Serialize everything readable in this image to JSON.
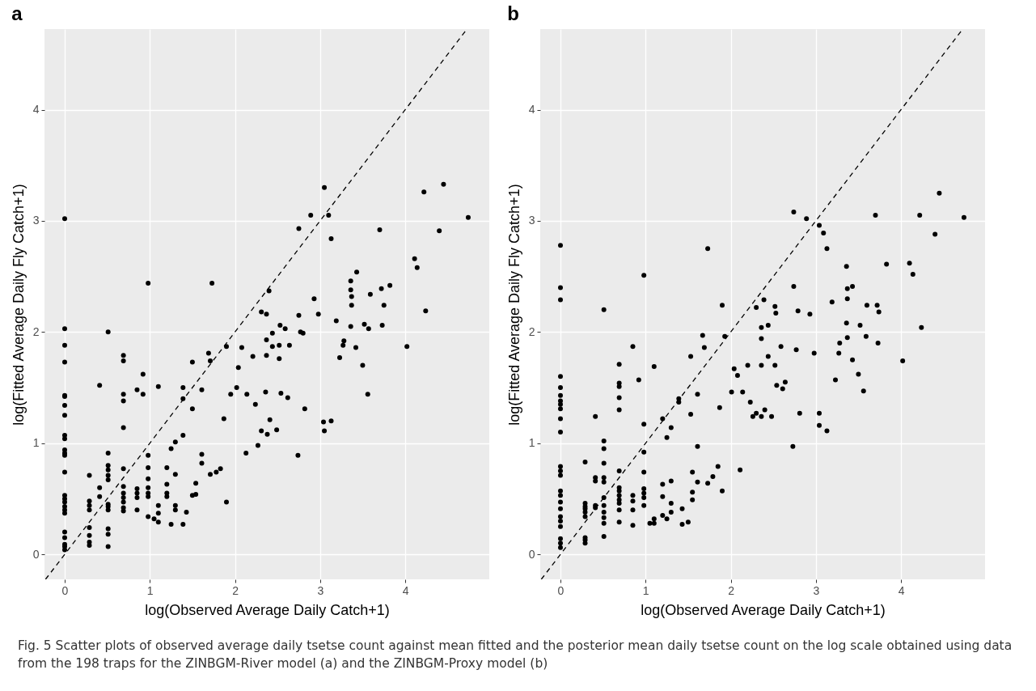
{
  "chart_data": [
    {
      "type": "scatter",
      "title": "a",
      "xlabel": "log(Observed Average Daily Catch+1)",
      "ylabel": "log(Fitted Average Daily Fly Catch+1)",
      "xlim": [
        -0.2375,
        4.9875
      ],
      "ylim": [
        -0.225,
        4.725
      ],
      "xticks": [
        0,
        1,
        2,
        3,
        4
      ],
      "yticks": [
        0,
        1,
        2,
        3,
        4
      ],
      "grid": true,
      "annotations": [
        "Fig. 5 Scatter plots of observed average daily tsetse count against mean fitted and the posterior mean daily tsetse count on the log scale obtained using data from the 198 traps for the ZINBGM-River model (a) and the ZINBGM-Proxy model (b)"
      ],
      "series": [
        {
          "marker": "circle",
          "color": "#000000",
          "x": [
            0,
            0,
            0,
            0,
            0,
            0,
            0,
            0,
            0,
            0,
            0,
            0,
            0,
            0,
            0,
            0,
            0,
            0,
            0,
            0,
            0,
            0,
            0,
            0,
            0,
            0.29,
            0.29,
            0.29,
            0.29,
            0.29,
            0.29,
            0.29,
            0.29,
            0.41,
            0.41,
            0.41,
            0.51,
            0.51,
            0.51,
            0.51,
            0.51,
            0.51,
            0.51,
            0.51,
            0.51,
            0.51,
            0.51,
            0.51,
            0.69,
            0.69,
            0.69,
            0.69,
            0.69,
            0.69,
            0.69,
            0.69,
            0.69,
            0.69,
            0.69,
            0.69,
            0.85,
            0.85,
            0.85,
            0.85,
            0.85,
            0.92,
            0.92,
            0.98,
            0.98,
            0.98,
            0.98,
            0.98,
            0.98,
            0.98,
            0.98,
            1.05,
            1.1,
            1.1,
            1.1,
            1.1,
            1.2,
            1.2,
            1.2,
            1.2,
            1.25,
            1.25,
            1.3,
            1.3,
            1.3,
            1.3,
            1.39,
            1.39,
            1.39,
            1.39,
            1.43,
            1.5,
            1.5,
            1.5,
            1.54,
            1.54,
            1.61,
            1.61,
            1.61,
            1.69,
            1.71,
            1.71,
            1.73,
            1.78,
            1.83,
            1.87,
            1.9,
            1.9,
            1.95,
            2.04,
            2.08,
            2.21,
            2.02,
            2.14,
            2.13,
            2.24,
            2.27,
            2.31,
            2.31,
            2.37,
            2.4,
            2.37,
            2.44,
            2.44,
            2.37,
            2.36,
            2.41,
            2.38,
            2.49,
            2.53,
            2.52,
            2.52,
            2.54,
            2.59,
            2.62,
            2.64,
            2.75,
            2.75,
            2.74,
            2.77,
            2.8,
            2.82,
            2.89,
            2.93,
            2.98,
            3.05,
            3.1,
            3.13,
            3.04,
            3.05,
            3.13,
            3.19,
            3.23,
            3.27,
            3.28,
            3.36,
            3.36,
            3.37,
            3.37,
            3.36,
            3.43,
            3.42,
            3.5,
            3.52,
            3.57,
            3.56,
            3.59,
            3.7,
            3.72,
            3.75,
            3.73,
            3.82,
            4.02,
            4.11,
            4.14,
            4.22,
            4.24,
            4.4,
            4.45,
            4.74
          ],
          "values": [
            3.02,
            2.03,
            1.88,
            1.73,
            1.43,
            1.42,
            1.34,
            1.25,
            1.07,
            1.04,
            0.94,
            0.91,
            0.89,
            0.74,
            0.53,
            0.5,
            0.47,
            0.43,
            0.4,
            0.37,
            0.2,
            0.15,
            0.09,
            0.07,
            0.04,
            0.71,
            0.48,
            0.44,
            0.4,
            0.24,
            0.17,
            0.11,
            0.08,
            1.52,
            0.6,
            0.52,
            2.0,
            0.91,
            0.8,
            0.76,
            0.71,
            0.67,
            0.45,
            0.43,
            0.4,
            0.23,
            0.18,
            0.07,
            1.79,
            1.74,
            1.44,
            1.38,
            1.14,
            0.77,
            0.61,
            0.55,
            0.51,
            0.47,
            0.42,
            0.39,
            1.48,
            0.59,
            0.55,
            0.51,
            0.4,
            1.62,
            1.44,
            2.44,
            0.89,
            0.78,
            0.68,
            0.6,
            0.55,
            0.52,
            0.34,
            0.32,
            1.51,
            0.44,
            0.37,
            0.29,
            0.78,
            0.63,
            0.55,
            0.52,
            0.95,
            0.27,
            1.01,
            0.72,
            0.44,
            0.4,
            1.5,
            1.4,
            1.07,
            0.27,
            0.38,
            1.73,
            1.31,
            0.53,
            0.64,
            0.54,
            1.48,
            0.9,
            0.82,
            1.81,
            1.74,
            0.72,
            2.44,
            0.74,
            0.77,
            1.22,
            1.87,
            0.47,
            1.44,
            1.68,
            1.86,
            1.78,
            1.5,
            1.44,
            0.91,
            1.35,
            0.98,
            1.11,
            2.18,
            2.16,
            2.37,
            1.93,
            1.99,
            1.87,
            1.79,
            1.46,
            1.21,
            1.08,
            1.12,
            2.06,
            1.88,
            1.76,
            1.45,
            2.03,
            1.41,
            1.88,
            2.15,
            2.93,
            0.89,
            2.0,
            1.99,
            1.31,
            3.05,
            2.3,
            2.16,
            3.3,
            3.05,
            2.84,
            1.19,
            1.11,
            1.2,
            2.1,
            1.77,
            1.88,
            1.92,
            2.46,
            2.38,
            2.32,
            2.24,
            2.05,
            2.54,
            1.86,
            1.7,
            2.07,
            2.03,
            1.44,
            2.34,
            2.92,
            2.39,
            2.24,
            2.06,
            2.42,
            1.87,
            2.66,
            2.58,
            3.26,
            2.19,
            2.91,
            3.33,
            3.03
          ]
        },
        {
          "type": "line",
          "color": "#000000",
          "line_style": "dashed",
          "x": [
            -0.225,
            4.725
          ],
          "values": [
            -0.225,
            4.725
          ]
        }
      ]
    },
    {
      "type": "scatter",
      "title": "b",
      "xlabel": "log(Observed Average Daily Catch+1)",
      "ylabel": "log(Fitted Average Daily Fly Catch+1)",
      "xlim": [
        -0.2375,
        4.9875
      ],
      "ylim": [
        -0.225,
        4.725
      ],
      "xticks": [
        0,
        1,
        2,
        3,
        4
      ],
      "yticks": [
        0,
        1,
        2,
        3,
        4
      ],
      "grid": true,
      "series": [
        {
          "marker": "circle",
          "color": "#000000",
          "x": [
            0,
            0,
            0,
            0,
            0,
            0,
            0,
            0,
            0,
            0,
            0,
            0,
            0,
            0,
            0,
            0,
            0,
            0,
            0,
            0,
            0,
            0,
            0,
            0,
            0.29,
            0.29,
            0.29,
            0.29,
            0.29,
            0.29,
            0.29,
            0.29,
            0.29,
            0.41,
            0.41,
            0.41,
            0.41,
            0.41,
            0.51,
            0.51,
            0.51,
            0.51,
            0.51,
            0.51,
            0.51,
            0.51,
            0.51,
            0.51,
            0.51,
            0.51,
            0.69,
            0.69,
            0.69,
            0.69,
            0.69,
            0.69,
            0.69,
            0.69,
            0.69,
            0.69,
            0.69,
            0.69,
            0.69,
            0.85,
            0.85,
            0.85,
            0.85,
            0.85,
            0.92,
            0.98,
            0.98,
            0.98,
            0.98,
            0.98,
            0.98,
            0.98,
            0.98,
            1.05,
            1.1,
            1.1,
            1.1,
            1.2,
            1.2,
            1.2,
            1.2,
            1.25,
            1.25,
            1.3,
            1.3,
            1.3,
            1.3,
            1.39,
            1.39,
            1.43,
            1.43,
            1.5,
            1.53,
            1.53,
            1.55,
            1.55,
            1.55,
            1.61,
            1.61,
            1.61,
            1.67,
            1.69,
            1.73,
            1.73,
            1.79,
            1.85,
            1.87,
            1.9,
            1.9,
            1.93,
            2.11,
            2.04,
            2.08,
            2.2,
            2.01,
            2.14,
            2.23,
            2.26,
            2.3,
            2.36,
            2.4,
            2.48,
            2.3,
            2.39,
            2.36,
            2.44,
            2.36,
            2.44,
            2.36,
            2.52,
            2.52,
            2.53,
            2.59,
            2.54,
            2.61,
            2.64,
            2.74,
            2.74,
            2.73,
            2.77,
            2.79,
            2.81,
            2.89,
            2.93,
            2.98,
            3.04,
            3.09,
            3.13,
            3.04,
            3.04,
            3.13,
            3.19,
            3.23,
            3.27,
            3.28,
            3.36,
            3.37,
            3.43,
            3.37,
            3.36,
            3.37,
            3.43,
            3.5,
            3.52,
            3.59,
            3.56,
            3.6,
            3.7,
            3.72,
            3.74,
            3.73,
            3.83,
            4.02,
            4.1,
            4.14,
            4.22,
            4.24,
            4.4,
            4.45,
            4.74
          ],
          "values": [
            2.78,
            2.4,
            2.29,
            1.6,
            1.5,
            1.43,
            1.38,
            1.35,
            1.31,
            1.22,
            1.1,
            0.79,
            0.75,
            0.71,
            0.57,
            0.53,
            0.47,
            0.41,
            0.34,
            0.3,
            0.25,
            0.14,
            0.1,
            0.06,
            0.83,
            0.46,
            0.43,
            0.41,
            0.38,
            0.34,
            0.15,
            0.13,
            0.1,
            1.24,
            0.69,
            0.66,
            0.44,
            0.42,
            2.2,
            1.02,
            0.95,
            0.82,
            0.69,
            0.65,
            0.51,
            0.44,
            0.38,
            0.33,
            0.28,
            0.16,
            1.71,
            1.54,
            1.51,
            1.41,
            1.3,
            0.75,
            0.6,
            0.57,
            0.53,
            0.49,
            0.46,
            0.4,
            0.29,
            1.87,
            0.53,
            0.48,
            0.4,
            0.26,
            1.57,
            2.51,
            1.17,
            0.92,
            0.74,
            0.59,
            0.55,
            0.51,
            0.44,
            0.28,
            1.69,
            0.32,
            0.28,
            1.22,
            0.63,
            0.52,
            0.35,
            1.05,
            0.32,
            1.14,
            0.66,
            0.46,
            0.38,
            1.4,
            1.37,
            0.41,
            0.27,
            0.29,
            1.78,
            1.26,
            0.74,
            0.56,
            0.49,
            1.44,
            0.97,
            0.65,
            1.97,
            1.86,
            2.75,
            0.64,
            0.7,
            0.79,
            1.32,
            2.24,
            0.57,
            1.96,
            0.76,
            1.67,
            1.61,
            1.7,
            1.46,
            1.46,
            1.37,
            1.24,
            1.27,
            1.24,
            1.3,
            1.24,
            2.22,
            2.29,
            2.04,
            2.06,
            1.94,
            1.78,
            1.7,
            1.7,
            2.23,
            2.17,
            1.87,
            1.52,
            1.49,
            1.55,
            3.08,
            2.41,
            0.97,
            1.84,
            2.19,
            1.27,
            3.02,
            2.16,
            1.81,
            2.96,
            2.89,
            2.75,
            1.27,
            1.16,
            1.11,
            2.27,
            1.57,
            1.81,
            1.9,
            2.59,
            2.39,
            2.41,
            2.3,
            2.08,
            1.95,
            1.75,
            1.62,
            2.06,
            1.96,
            1.47,
            2.24,
            3.05,
            2.24,
            2.18,
            1.9,
            2.61,
            1.74,
            2.62,
            2.52,
            3.05,
            2.04,
            2.88,
            3.25,
            3.03
          ]
        },
        {
          "type": "line",
          "color": "#000000",
          "line_style": "dashed",
          "x": [
            -0.225,
            4.725
          ],
          "values": [
            -0.225,
            4.725
          ]
        }
      ]
    }
  ]
}
